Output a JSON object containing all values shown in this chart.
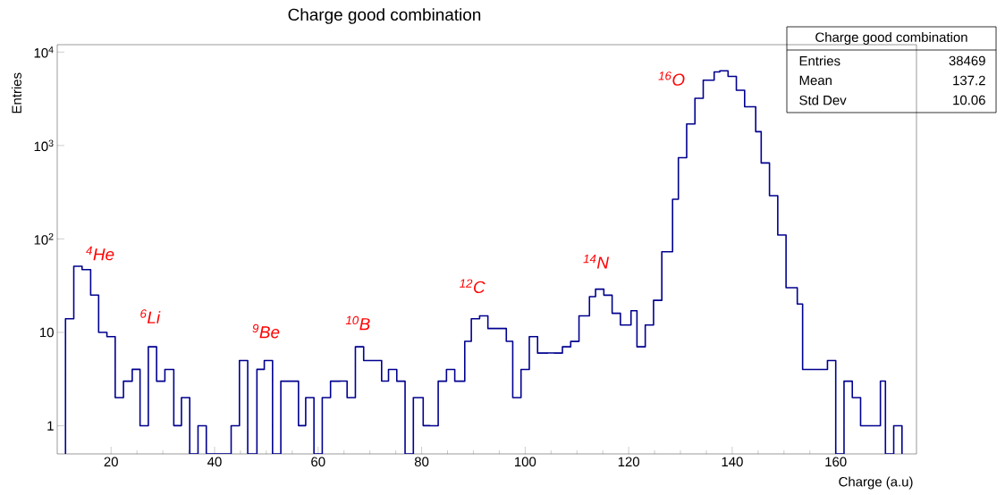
{
  "chart_data": {
    "type": "histogram",
    "title": "Charge good combination",
    "xlabel": "Charge (a.u)",
    "ylabel": "Entries",
    "color": "#00008f",
    "log": true,
    "grid": false,
    "xlim": [
      9.6,
      175.6
    ],
    "xticks": [
      20,
      40,
      60,
      80,
      100,
      120,
      140,
      160
    ],
    "ylim": [
      0.5,
      12000
    ],
    "yticks": [
      1,
      10,
      {
        "value": 100,
        "label": "10$^{2}$"
      },
      {
        "value": 1000,
        "label": "10$^{3}$"
      },
      {
        "value": 10000,
        "label": "10$^{4}$"
      }
    ],
    "bins": [
      11.2,
      12.8,
      14.4,
      16,
      17.6,
      19.2,
      20.8,
      22.4,
      24,
      25.6,
      27.2,
      28.8,
      30.4,
      32,
      33.6,
      35.2,
      36.8,
      38.4,
      40,
      41.6,
      43.2,
      44.8,
      46.4,
      48,
      49.6,
      51.2,
      52.8,
      54.4,
      56,
      57.6,
      59.2,
      60.8,
      62.4,
      64,
      65.6,
      67.2,
      68.8,
      70.4,
      72,
      73.6,
      75.2,
      76.8,
      78.4,
      80,
      81.6,
      83.2,
      84.8,
      86.4,
      88,
      89.6,
      91.2,
      92.8,
      94.4,
      96,
      97.6,
      99.2,
      100.8,
      102.4,
      104,
      105.6,
      107.2,
      108.8,
      110.4,
      112,
      113.6,
      115.2,
      116.8,
      118.4,
      120,
      121.6,
      123.2,
      124.8,
      126.4,
      128,
      129.6,
      131.2,
      132.8,
      134.4,
      136,
      137.6,
      139.2,
      140.8,
      142.4,
      144,
      145.6,
      147.2,
      148.8,
      150.4,
      152,
      153.6,
      155.2,
      156.8,
      158.4,
      160,
      161.6,
      163.2,
      164.8,
      166.4,
      168,
      169.6,
      171.2,
      172.8
    ],
    "values": [
      14,
      51,
      47,
      25,
      10,
      9,
      2,
      3,
      4,
      1,
      7,
      3,
      4,
      1,
      2,
      null,
      1,
      null,
      null,
      null,
      1,
      5,
      null,
      4,
      5,
      null,
      3,
      3,
      1,
      2,
      null,
      2,
      3,
      3,
      2,
      7,
      5,
      5,
      3,
      4,
      3,
      null,
      2,
      1,
      1,
      3,
      4,
      3,
      8,
      14,
      15,
      11,
      11,
      8,
      2,
      4,
      9,
      6,
      6,
      6,
      7,
      8,
      15,
      24,
      29,
      25,
      16,
      12,
      17,
      7,
      12,
      22,
      73,
      265,
      740,
      1700,
      3200,
      5000,
      6100,
      6300,
      5500,
      3900,
      2600,
      1400,
      650,
      290,
      110,
      30,
      20,
      4,
      4,
      4,
      5,
      null,
      3,
      2,
      1,
      1,
      3,
      null,
      1
    ],
    "annotations": [
      "$^{4}$He",
      "$^{6}$Li",
      "$^{9}$Be",
      "$^{10}$B",
      "$^{12}$C",
      "$^{14}$N",
      "$^{16}$O",
      "Charge good combination",
      "Entries",
      "38469",
      "Mean",
      "137.2",
      "Std Dev",
      "10.06"
    ]
  }
}
